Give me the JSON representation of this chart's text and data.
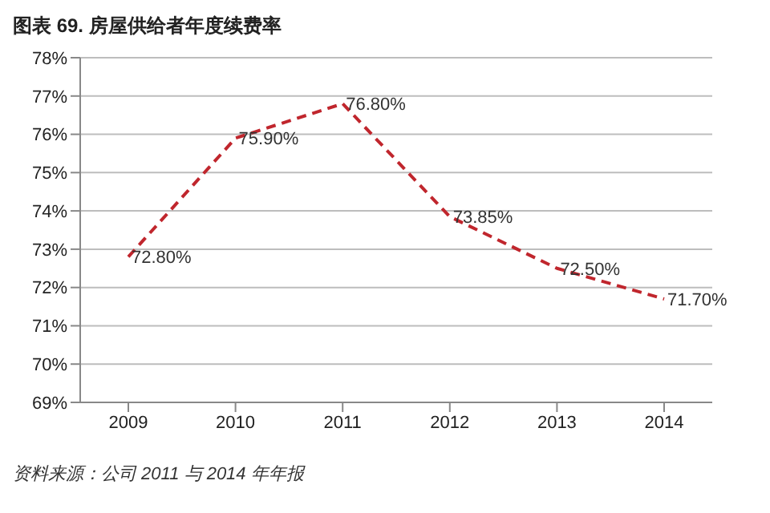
{
  "chart_data": {
    "type": "line",
    "title": "图表 69. 房屋供给者年度续费率",
    "categories": [
      "2009",
      "2010",
      "2011",
      "2012",
      "2013",
      "2014"
    ],
    "series": [
      {
        "color": "#c0262d",
        "values": [
          72.8,
          75.9,
          76.8,
          73.85,
          72.5,
          71.7
        ],
        "value_labels": [
          "72.80%",
          "75.90%",
          "76.80%",
          "73.85%",
          "72.50%",
          "71.70%"
        ]
      }
    ],
    "ylim": [
      69,
      78
    ],
    "yticks": [
      {
        "value": 69,
        "label": "69%"
      },
      {
        "value": 70,
        "label": "70%"
      },
      {
        "value": 71,
        "label": "71%"
      },
      {
        "value": 72,
        "label": "72%"
      },
      {
        "value": 73,
        "label": "73%"
      },
      {
        "value": 74,
        "label": "74%"
      },
      {
        "value": 75,
        "label": "75%"
      },
      {
        "value": 76,
        "label": "76%"
      },
      {
        "value": 77,
        "label": "77%"
      },
      {
        "value": 78,
        "label": "78%"
      }
    ],
    "grid": "y",
    "line_style": "dashed",
    "marker": "none",
    "annotations": [
      "资料来源：公司 2011 与 2014 年年报"
    ]
  }
}
